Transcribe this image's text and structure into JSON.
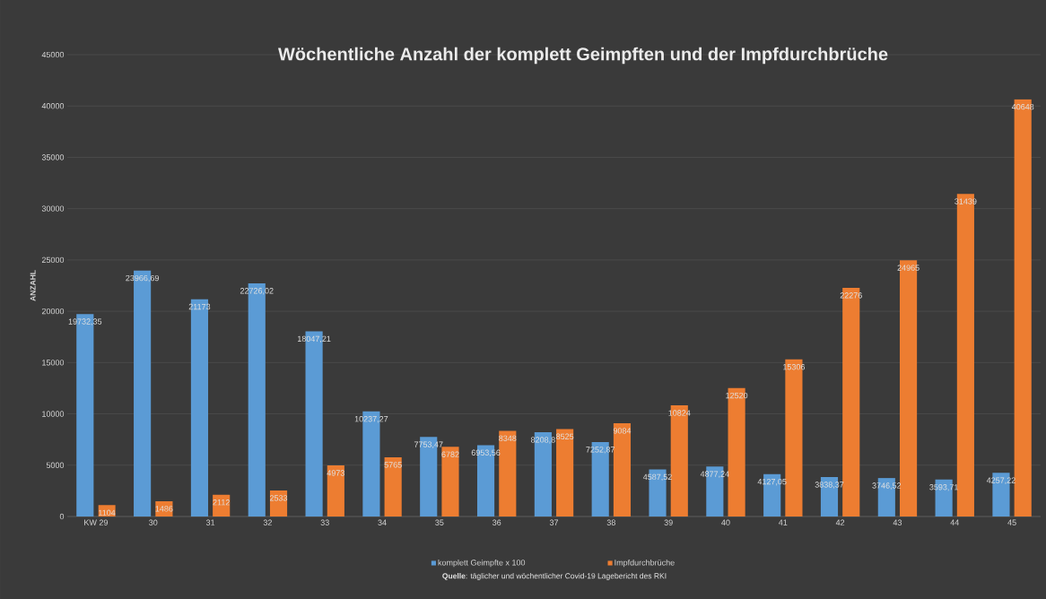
{
  "chart_data": {
    "type": "bar",
    "title": "Wöchentliche Anzahl der komplett Geimpften und der Impfdurchbrüche",
    "ylabel": "ANZAHL",
    "categories": [
      "KW 29",
      "30",
      "31",
      "32",
      "33",
      "34",
      "35",
      "36",
      "37",
      "38",
      "39",
      "40",
      "41",
      "42",
      "43",
      "44",
      "45"
    ],
    "series": [
      {
        "name": "komplett Geimpfte x 100",
        "color": "#5b9bd5",
        "values": [
          19732.35,
          23966.69,
          21173,
          22726.02,
          18047.21,
          10237.27,
          7753.47,
          6953.56,
          8208.8,
          7252.87,
          4587.52,
          4877.24,
          4127.05,
          3838.37,
          3746.52,
          3593.71,
          4257.22
        ],
        "value_labels": [
          "19732,35",
          "23966,69",
          "21173",
          "22726,02",
          "18047,21",
          "10237,27",
          "7753,47",
          "6953,56",
          "8208,8",
          "7252,87",
          "4587,52",
          "4877,24",
          "4127,05",
          "3838,37",
          "3746,52",
          "3593,71",
          "4257,22"
        ]
      },
      {
        "name": "Impfdurchbrüche",
        "color": "#ed7d31",
        "values": [
          1104,
          1486,
          2112,
          2533,
          4973,
          5765,
          6782,
          8348,
          8525,
          9084,
          10824,
          12520,
          15306,
          22276,
          24965,
          31439,
          40648
        ],
        "value_labels": [
          "1104",
          "1486",
          "2112",
          "2533",
          "4973",
          "5765",
          "6782",
          "8348",
          "8525",
          "9084",
          "10824",
          "12520",
          "15306",
          "22276",
          "24965",
          "31439",
          "40648"
        ]
      }
    ],
    "ylim": [
      0,
      45000
    ],
    "yticks": [
      0,
      5000,
      10000,
      15000,
      20000,
      25000,
      30000,
      35000,
      40000,
      45000
    ],
    "grid": "y",
    "legend": "bottom",
    "annotations": [
      "**Quelle**: täglicher und wöchentlicher Covid-19 Lagebericht des RKI"
    ]
  }
}
